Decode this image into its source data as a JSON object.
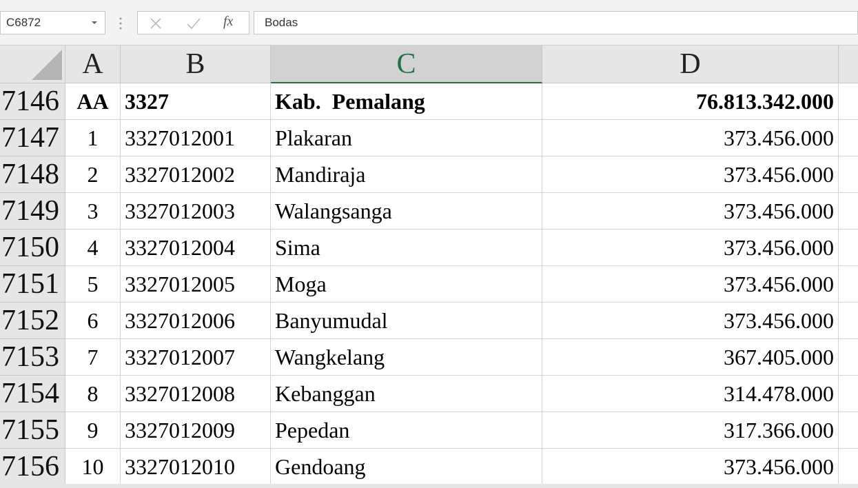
{
  "name_box": "C6872",
  "formula_bar": {
    "function_label": "fx",
    "content": "Bodas"
  },
  "columns": [
    "A",
    "B",
    "C",
    "D"
  ],
  "rows": [
    {
      "number": 7146,
      "cells": [
        "AA",
        3327,
        "Kab.  Pemalang",
        "76.813.342.000"
      ]
    },
    {
      "number": 7147,
      "cells": [
        1,
        3327012001,
        "Plakaran",
        "373.456.000"
      ]
    },
    {
      "number": 7148,
      "cells": [
        2,
        3327012002,
        "Mandiraja",
        "373.456.000"
      ]
    },
    {
      "number": 7149,
      "cells": [
        3,
        3327012003,
        "Walangsanga",
        "373.456.000"
      ]
    },
    {
      "number": 7150,
      "cells": [
        4,
        3327012004,
        "Sima",
        "373.456.000"
      ]
    },
    {
      "number": 7151,
      "cells": [
        5,
        3327012005,
        "Moga",
        "373.456.000"
      ]
    },
    {
      "number": 7152,
      "cells": [
        6,
        3327012006,
        "Banyumudal",
        "373.456.000"
      ]
    },
    {
      "number": 7153,
      "cells": [
        7,
        3327012007,
        "Wangkelang",
        "367.405.000"
      ]
    },
    {
      "number": 7154,
      "cells": [
        8,
        3327012008,
        "Kebanggan",
        "314.478.000"
      ]
    },
    {
      "number": 7155,
      "cells": [
        9,
        3327012009,
        "Pepedan",
        "317.366.000"
      ]
    },
    {
      "number": 7156,
      "cells": [
        10,
        3327012010,
        "Gendoang",
        "373.456.000"
      ]
    }
  ]
}
